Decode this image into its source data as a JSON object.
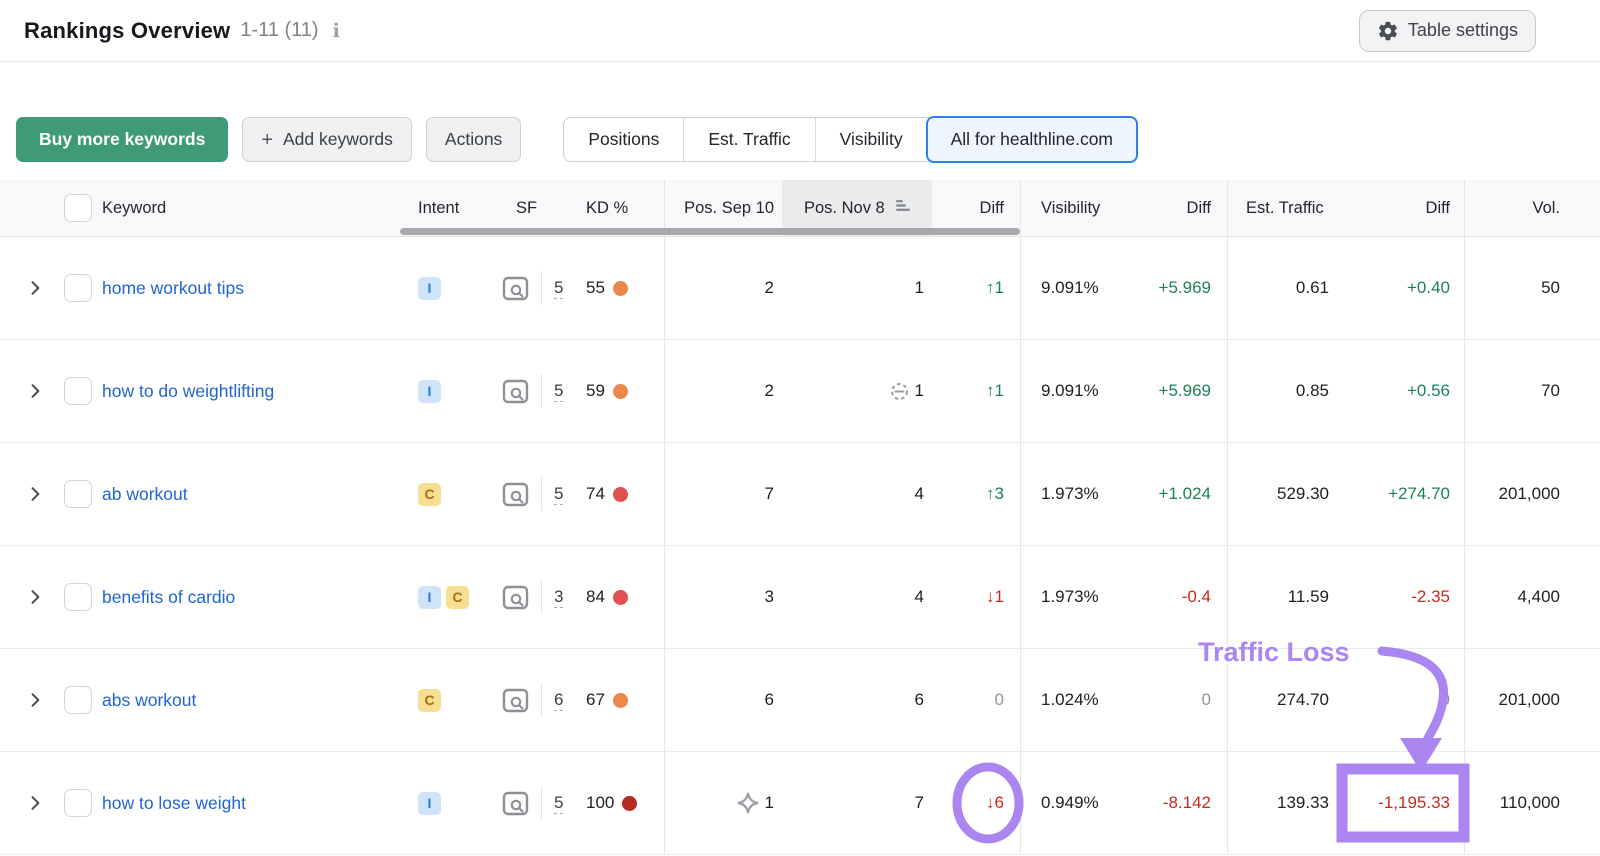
{
  "header": {
    "title": "Rankings Overview",
    "range": "1-11 (11)",
    "info_icon": "i",
    "table_settings_label": "Table settings"
  },
  "toolbar": {
    "buy_label": "Buy more keywords",
    "add_plus": "+",
    "add_label": "Add keywords",
    "actions_label": "Actions",
    "tabs": [
      {
        "label": "Positions",
        "selected": false
      },
      {
        "label": "Est. Traffic",
        "selected": false
      },
      {
        "label": "Visibility",
        "selected": false
      },
      {
        "label": "All for healthline.com",
        "selected": true
      }
    ]
  },
  "table": {
    "columns": [
      "Keyword",
      "Intent",
      "SF",
      "KD %",
      "Pos. Sep 10",
      "Pos. Nov 8",
      "Diff",
      "Visibility",
      "Diff",
      "Est. Traffic",
      "Diff",
      "Vol."
    ],
    "sorted_column": "Pos. Nov 8",
    "rows": [
      {
        "keyword": "home workout tips",
        "intents": [
          "I"
        ],
        "sf": "5",
        "kd": "55",
        "kd_level": "orange",
        "pos_prev": "2",
        "pos_prev_icon": null,
        "pos_new": "1",
        "pos_new_icon": null,
        "pos_diff": "↑1",
        "pos_diff_dir": "up",
        "visibility": "9.091%",
        "vis_diff": "+5.969",
        "vis_diff_dir": "up",
        "traffic": "0.61",
        "traffic_diff": "+0.40",
        "traffic_diff_dir": "up",
        "volume": "50"
      },
      {
        "keyword": "how to do weightlifting",
        "intents": [
          "I"
        ],
        "sf": "5",
        "kd": "59",
        "kd_level": "orange",
        "pos_prev": "2",
        "pos_prev_icon": null,
        "pos_new": "1",
        "pos_new_icon": "link-icon",
        "pos_diff": "↑1",
        "pos_diff_dir": "up",
        "visibility": "9.091%",
        "vis_diff": "+5.969",
        "vis_diff_dir": "up",
        "traffic": "0.85",
        "traffic_diff": "+0.56",
        "traffic_diff_dir": "up",
        "volume": "70"
      },
      {
        "keyword": "ab workout",
        "intents": [
          "C"
        ],
        "sf": "5",
        "kd": "74",
        "kd_level": "red",
        "pos_prev": "7",
        "pos_prev_icon": null,
        "pos_new": "4",
        "pos_new_icon": null,
        "pos_diff": "↑3",
        "pos_diff_dir": "up",
        "visibility": "1.973%",
        "vis_diff": "+1.024",
        "vis_diff_dir": "up",
        "traffic": "529.30",
        "traffic_diff": "+274.70",
        "traffic_diff_dir": "up",
        "volume": "201,000"
      },
      {
        "keyword": "benefits of cardio",
        "intents": [
          "I",
          "C"
        ],
        "sf": "3",
        "kd": "84",
        "kd_level": "red",
        "pos_prev": "3",
        "pos_prev_icon": null,
        "pos_new": "4",
        "pos_new_icon": null,
        "pos_diff": "↓1",
        "pos_diff_dir": "down",
        "visibility": "1.973%",
        "vis_diff": "-0.4",
        "vis_diff_dir": "down",
        "traffic": "11.59",
        "traffic_diff": "-2.35",
        "traffic_diff_dir": "down",
        "volume": "4,400"
      },
      {
        "keyword": "abs workout",
        "intents": [
          "C"
        ],
        "sf": "6",
        "kd": "67",
        "kd_level": "orange",
        "pos_prev": "6",
        "pos_prev_icon": null,
        "pos_new": "6",
        "pos_new_icon": null,
        "pos_diff": "0",
        "pos_diff_dir": "zero",
        "visibility": "1.024%",
        "vis_diff": "0",
        "vis_diff_dir": "zero",
        "traffic": "274.70",
        "traffic_diff": "0",
        "traffic_diff_dir": "zero",
        "volume": "201,000"
      },
      {
        "keyword": "how to lose weight",
        "intents": [
          "I"
        ],
        "sf": "5",
        "kd": "100",
        "kd_level": "darkred",
        "pos_prev": "1",
        "pos_prev_icon": "featured-snippet-icon",
        "pos_new": "7",
        "pos_new_icon": null,
        "pos_diff": "↓6",
        "pos_diff_dir": "down",
        "visibility": "0.949%",
        "vis_diff": "-8.142",
        "vis_diff_dir": "down",
        "traffic": "139.33",
        "traffic_diff": "-1,195.33",
        "traffic_diff_dir": "down",
        "volume": "110,000"
      }
    ]
  },
  "annotations": {
    "label": "Traffic Loss",
    "circled_value": "↓6",
    "boxed_value": "-1,195.33",
    "color": "#ab85f0"
  },
  "colors": {
    "buy_button_green": "#3f9b76",
    "link_blue": "#2264d1",
    "positive_green": "#1d8156",
    "negative_red": "#c62a1e",
    "neutral_gray": "#8f949b",
    "kd_orange": "#e9884a",
    "kd_red": "#e05050",
    "kd_darkred": "#b32b20",
    "selected_tab_border": "#3080ec",
    "annotation_purple": "#ab85f0"
  }
}
